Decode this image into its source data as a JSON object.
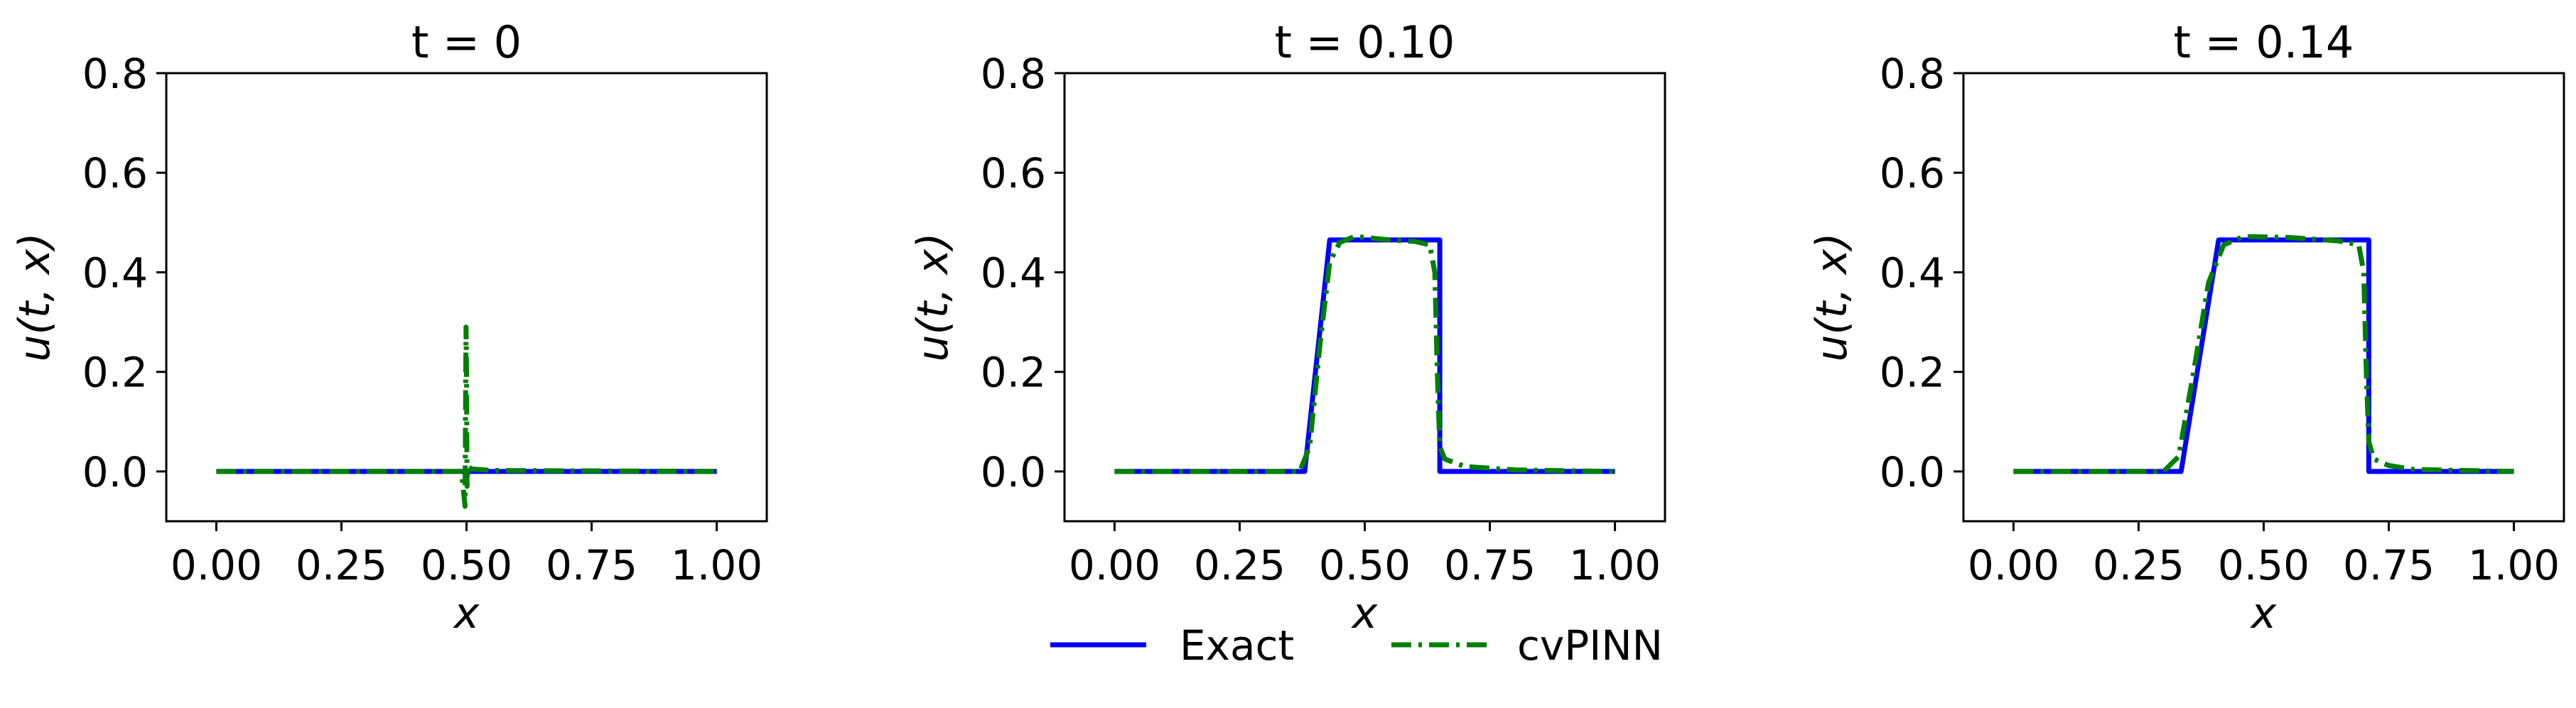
{
  "chart_data": [
    {
      "type": "line",
      "title": "t = 0",
      "xlabel": "x",
      "ylabel": "u(t, x)",
      "xlim": [
        -0.1,
        1.1
      ],
      "ylim": [
        -0.1,
        0.8
      ],
      "xticks": [
        "0.00",
        "0.25",
        "0.50",
        "0.75",
        "1.00"
      ],
      "yticks": [
        "0.0",
        "0.2",
        "0.4",
        "0.6",
        "0.8"
      ],
      "series": [
        {
          "name": "Exact",
          "color": "#0000ff",
          "style": "solid",
          "x": [
            0.0,
            1.0
          ],
          "y": [
            0.0,
            0.0
          ]
        },
        {
          "name": "cvPINN",
          "color": "#008000",
          "style": "dashdot",
          "x": [
            0.0,
            0.45,
            0.49,
            0.497,
            0.499,
            0.5,
            0.501,
            0.503,
            0.51,
            0.55,
            1.0
          ],
          "y": [
            0.0,
            0.0,
            0.0,
            -0.07,
            0.29,
            0.2,
            -0.03,
            0.01,
            0.005,
            0.002,
            0.0
          ]
        }
      ]
    },
    {
      "type": "line",
      "title": "t = 0.10",
      "xlabel": "x",
      "ylabel": "u(t, x)",
      "xlim": [
        -0.1,
        1.1
      ],
      "ylim": [
        -0.1,
        0.8
      ],
      "xticks": [
        "0.00",
        "0.25",
        "0.50",
        "0.75",
        "1.00"
      ],
      "yticks": [
        "0.0",
        "0.2",
        "0.4",
        "0.6",
        "0.8"
      ],
      "series": [
        {
          "name": "Exact",
          "color": "#0000ff",
          "style": "solid",
          "x": [
            0.0,
            0.38,
            0.43,
            0.65,
            0.65,
            1.0
          ],
          "y": [
            0.0,
            0.0,
            0.465,
            0.465,
            0.0,
            0.0
          ]
        },
        {
          "name": "cvPINN",
          "color": "#008000",
          "style": "dashdot",
          "x": [
            0.0,
            0.37,
            0.39,
            0.41,
            0.43,
            0.45,
            0.48,
            0.55,
            0.6,
            0.63,
            0.64,
            0.645,
            0.65,
            0.66,
            0.7,
            0.8,
            1.0
          ],
          "y": [
            0.0,
            0.0,
            0.05,
            0.25,
            0.42,
            0.46,
            0.472,
            0.465,
            0.462,
            0.455,
            0.4,
            0.2,
            0.05,
            0.025,
            0.01,
            0.003,
            0.0
          ]
        }
      ]
    },
    {
      "type": "line",
      "title": "t = 0.14",
      "xlabel": "x",
      "ylabel": "u(t, x)",
      "xlim": [
        -0.1,
        1.1
      ],
      "ylim": [
        -0.1,
        0.8
      ],
      "xticks": [
        "0.00",
        "0.25",
        "0.50",
        "0.75",
        "1.00"
      ],
      "yticks": [
        "0.0",
        "0.2",
        "0.4",
        "0.6",
        "0.8"
      ],
      "series": [
        {
          "name": "Exact",
          "color": "#0000ff",
          "style": "solid",
          "x": [
            0.0,
            0.335,
            0.41,
            0.71,
            0.71,
            1.0
          ],
          "y": [
            0.0,
            0.0,
            0.465,
            0.465,
            0.0,
            0.0
          ]
        },
        {
          "name": "cvPINN",
          "color": "#008000",
          "style": "dashdot",
          "x": [
            0.0,
            0.3,
            0.33,
            0.36,
            0.39,
            0.42,
            0.46,
            0.55,
            0.65,
            0.69,
            0.7,
            0.705,
            0.71,
            0.72,
            0.75,
            0.8,
            1.0
          ],
          "y": [
            0.0,
            0.0,
            0.03,
            0.2,
            0.38,
            0.455,
            0.472,
            0.47,
            0.463,
            0.455,
            0.4,
            0.2,
            0.06,
            0.025,
            0.012,
            0.004,
            0.0
          ]
        }
      ]
    }
  ],
  "legend": {
    "placement": "bottom-center",
    "entries": [
      {
        "label": "Exact",
        "color": "#0000ff",
        "style": "solid"
      },
      {
        "label": "cvPINN",
        "color": "#008000",
        "style": "dashdot"
      }
    ]
  }
}
